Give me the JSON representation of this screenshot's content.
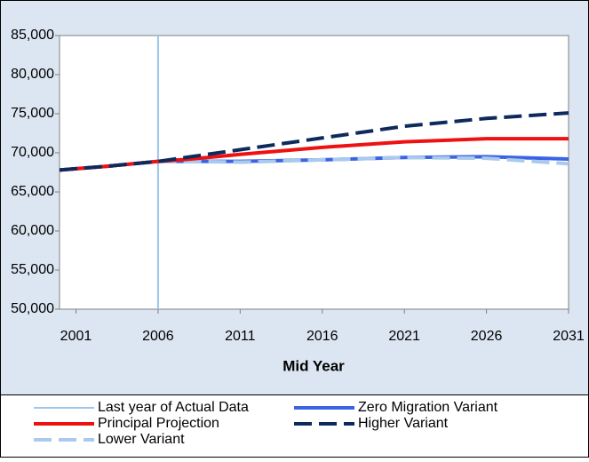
{
  "chart_data": {
    "type": "line",
    "xlabel": "Mid Year",
    "x": [
      2000,
      2003,
      2006,
      2008,
      2011,
      2016,
      2021,
      2026,
      2031
    ],
    "series": [
      {
        "name": "Zero Migration Variant",
        "color": "#3b63e3",
        "dash": false,
        "values": [
          67800,
          68300,
          68900,
          68900,
          68900,
          69100,
          69400,
          69500,
          69200
        ]
      },
      {
        "name": "Lower Variant",
        "color": "#a9c9ee",
        "dash": true,
        "values": [
          67800,
          68300,
          68900,
          68900,
          68800,
          69100,
          69400,
          69300,
          68600
        ]
      },
      {
        "name": "Principal Projection",
        "color": "#ee1111",
        "dash": false,
        "values": [
          67800,
          68300,
          68900,
          69200,
          69800,
          70700,
          71400,
          71800,
          71800
        ]
      },
      {
        "name": "Higher Variant",
        "color": "#0e2a5c",
        "dash": true,
        "values": [
          67800,
          68300,
          68900,
          69500,
          70400,
          71900,
          73400,
          74400,
          75100
        ]
      }
    ],
    "reference_line": {
      "name": "Last year of Actual Data",
      "x": 2006,
      "color": "#9cc6ea"
    },
    "xlim": [
      2000,
      2031
    ],
    "xticks": [
      2001,
      2006,
      2011,
      2016,
      2021,
      2026,
      2031
    ],
    "ylim": [
      50000,
      85000
    ],
    "yticks": [
      {
        "value": 50000,
        "label": "50,000"
      },
      {
        "value": 55000,
        "label": "55,000"
      },
      {
        "value": 60000,
        "label": "60,000"
      },
      {
        "value": 65000,
        "label": "65,000"
      },
      {
        "value": 70000,
        "label": "70,000"
      },
      {
        "value": 75000,
        "label": "75,000"
      },
      {
        "value": 80000,
        "label": "80,000"
      },
      {
        "value": 85000,
        "label": "85,000"
      }
    ],
    "grid": false
  }
}
